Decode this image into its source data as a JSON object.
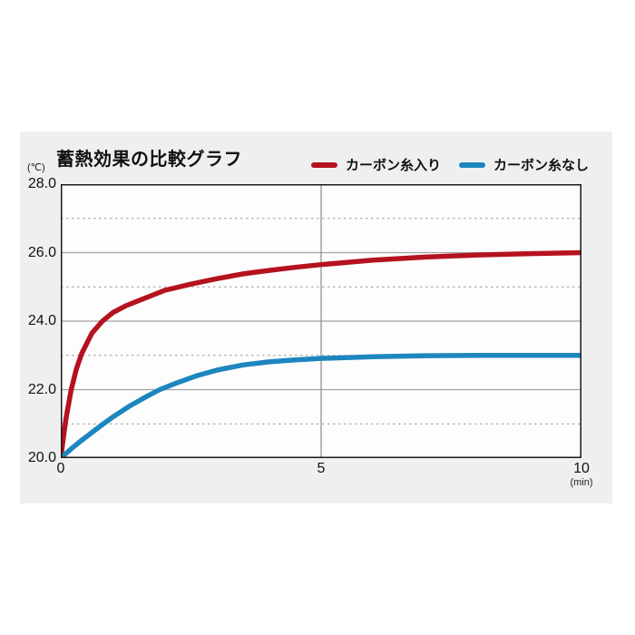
{
  "title": "蓄熱効果の比較グラフ",
  "y_unit": "(℃)",
  "x_unit": "(min)",
  "legend": [
    {
      "label": "カーボン糸入り",
      "color": "#b5121f"
    },
    {
      "label": "カーボン糸なし",
      "color": "#1d86bf"
    }
  ],
  "colors": {
    "panel_bg": "#efefef",
    "plot_bg": "#fdfdfd",
    "plot_border": "#1a1a1a",
    "grid_solid": "#a3a3a3",
    "grid_dotted": "#9a9a9a",
    "vline": "#8c8c8c"
  },
  "chart_data": {
    "type": "line",
    "title": "蓄熱効果の比較グラフ",
    "xlabel": "(min)",
    "ylabel": "(℃)",
    "xlim": [
      0,
      10
    ],
    "ylim": [
      20.0,
      28.0
    ],
    "x_ticks": [
      {
        "value": 0,
        "label": "0"
      },
      {
        "value": 5,
        "label": "5"
      },
      {
        "value": 10,
        "label": "10"
      }
    ],
    "y_ticks": [
      {
        "value": 28.0,
        "label": "28.0"
      },
      {
        "value": 26.0,
        "label": "26.0"
      },
      {
        "value": 24.0,
        "label": "24.0"
      },
      {
        "value": 22.0,
        "label": "22.0"
      },
      {
        "value": 20.0,
        "label": "20.0"
      }
    ],
    "grid_solid_y": [
      26.0,
      24.0,
      22.0
    ],
    "grid_dotted_y": [
      27.0,
      25.0,
      23.0,
      21.0
    ],
    "grid_vertical_x": [
      5
    ],
    "legend_position": "top-right",
    "series": [
      {
        "name": "カーボン糸入り",
        "color": "#b5121f",
        "points": [
          [
            0,
            20.0
          ],
          [
            0.05,
            20.6
          ],
          [
            0.1,
            21.15
          ],
          [
            0.2,
            22.0
          ],
          [
            0.3,
            22.6
          ],
          [
            0.4,
            23.05
          ],
          [
            0.6,
            23.65
          ],
          [
            0.8,
            24.0
          ],
          [
            1.0,
            24.25
          ],
          [
            1.25,
            24.45
          ],
          [
            1.5,
            24.6
          ],
          [
            2.0,
            24.9
          ],
          [
            2.5,
            25.08
          ],
          [
            3.0,
            25.24
          ],
          [
            3.5,
            25.38
          ],
          [
            4.0,
            25.48
          ],
          [
            4.5,
            25.57
          ],
          [
            5.0,
            25.65
          ],
          [
            6.0,
            25.78
          ],
          [
            7.0,
            25.87
          ],
          [
            8.0,
            25.93
          ],
          [
            9.0,
            25.97
          ],
          [
            10.0,
            26.0
          ]
        ]
      },
      {
        "name": "カーボン糸なし",
        "color": "#1d86bf",
        "points": [
          [
            0,
            20.0
          ],
          [
            0.2,
            20.27
          ],
          [
            0.4,
            20.52
          ],
          [
            0.6,
            20.75
          ],
          [
            0.8,
            20.98
          ],
          [
            1.0,
            21.2
          ],
          [
            1.3,
            21.5
          ],
          [
            1.6,
            21.76
          ],
          [
            1.9,
            22.0
          ],
          [
            2.2,
            22.18
          ],
          [
            2.6,
            22.4
          ],
          [
            3.0,
            22.57
          ],
          [
            3.5,
            22.72
          ],
          [
            4.0,
            22.81
          ],
          [
            4.5,
            22.87
          ],
          [
            5.0,
            22.91
          ],
          [
            6.0,
            22.96
          ],
          [
            7.0,
            22.99
          ],
          [
            8.0,
            23.0
          ],
          [
            9.0,
            23.0
          ],
          [
            10.0,
            23.0
          ]
        ]
      }
    ]
  }
}
